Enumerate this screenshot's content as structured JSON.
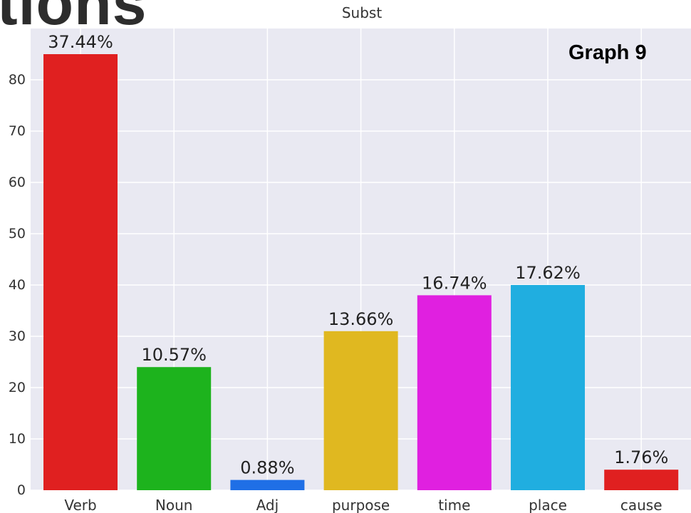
{
  "page": {
    "heading_fragment": "tions",
    "graph_label": "Graph 9"
  },
  "chart_data": {
    "type": "bar",
    "title": "Subst",
    "xlabel": "",
    "ylabel": "",
    "categories": [
      "Verb",
      "Noun",
      "Adj",
      "purpose",
      "time",
      "place",
      "cause"
    ],
    "values": [
      85,
      24,
      2,
      31,
      38,
      40,
      4
    ],
    "data_labels": [
      "37.44%",
      "10.57%",
      "0.88%",
      "13.66%",
      "16.74%",
      "17.62%",
      "1.76%"
    ],
    "colors": [
      "#e02020",
      "#1db31d",
      "#1f6fe6",
      "#e0b820",
      "#e020e0",
      "#20aee0",
      "#e02020"
    ],
    "ylim": [
      0,
      90
    ],
    "yticks": [
      0,
      10,
      20,
      30,
      40,
      50,
      60,
      70,
      80
    ],
    "grid": true,
    "background": "#e9e9f2"
  }
}
